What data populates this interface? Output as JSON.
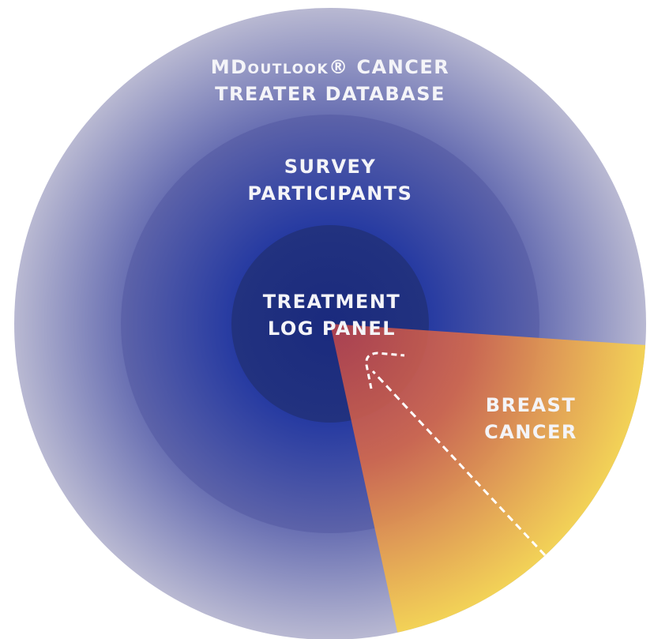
{
  "rings": [
    {
      "label": [
        "MDoutlook® CANCER",
        "TREATER DATABASE"
      ]
    },
    {
      "label": [
        "SURVEY",
        "PARTICIPANTS"
      ]
    },
    {
      "label": [
        "TREATMENT",
        "LOG PANEL"
      ]
    }
  ],
  "segment": {
    "label": [
      "BREAST",
      "CANCER"
    ]
  }
}
